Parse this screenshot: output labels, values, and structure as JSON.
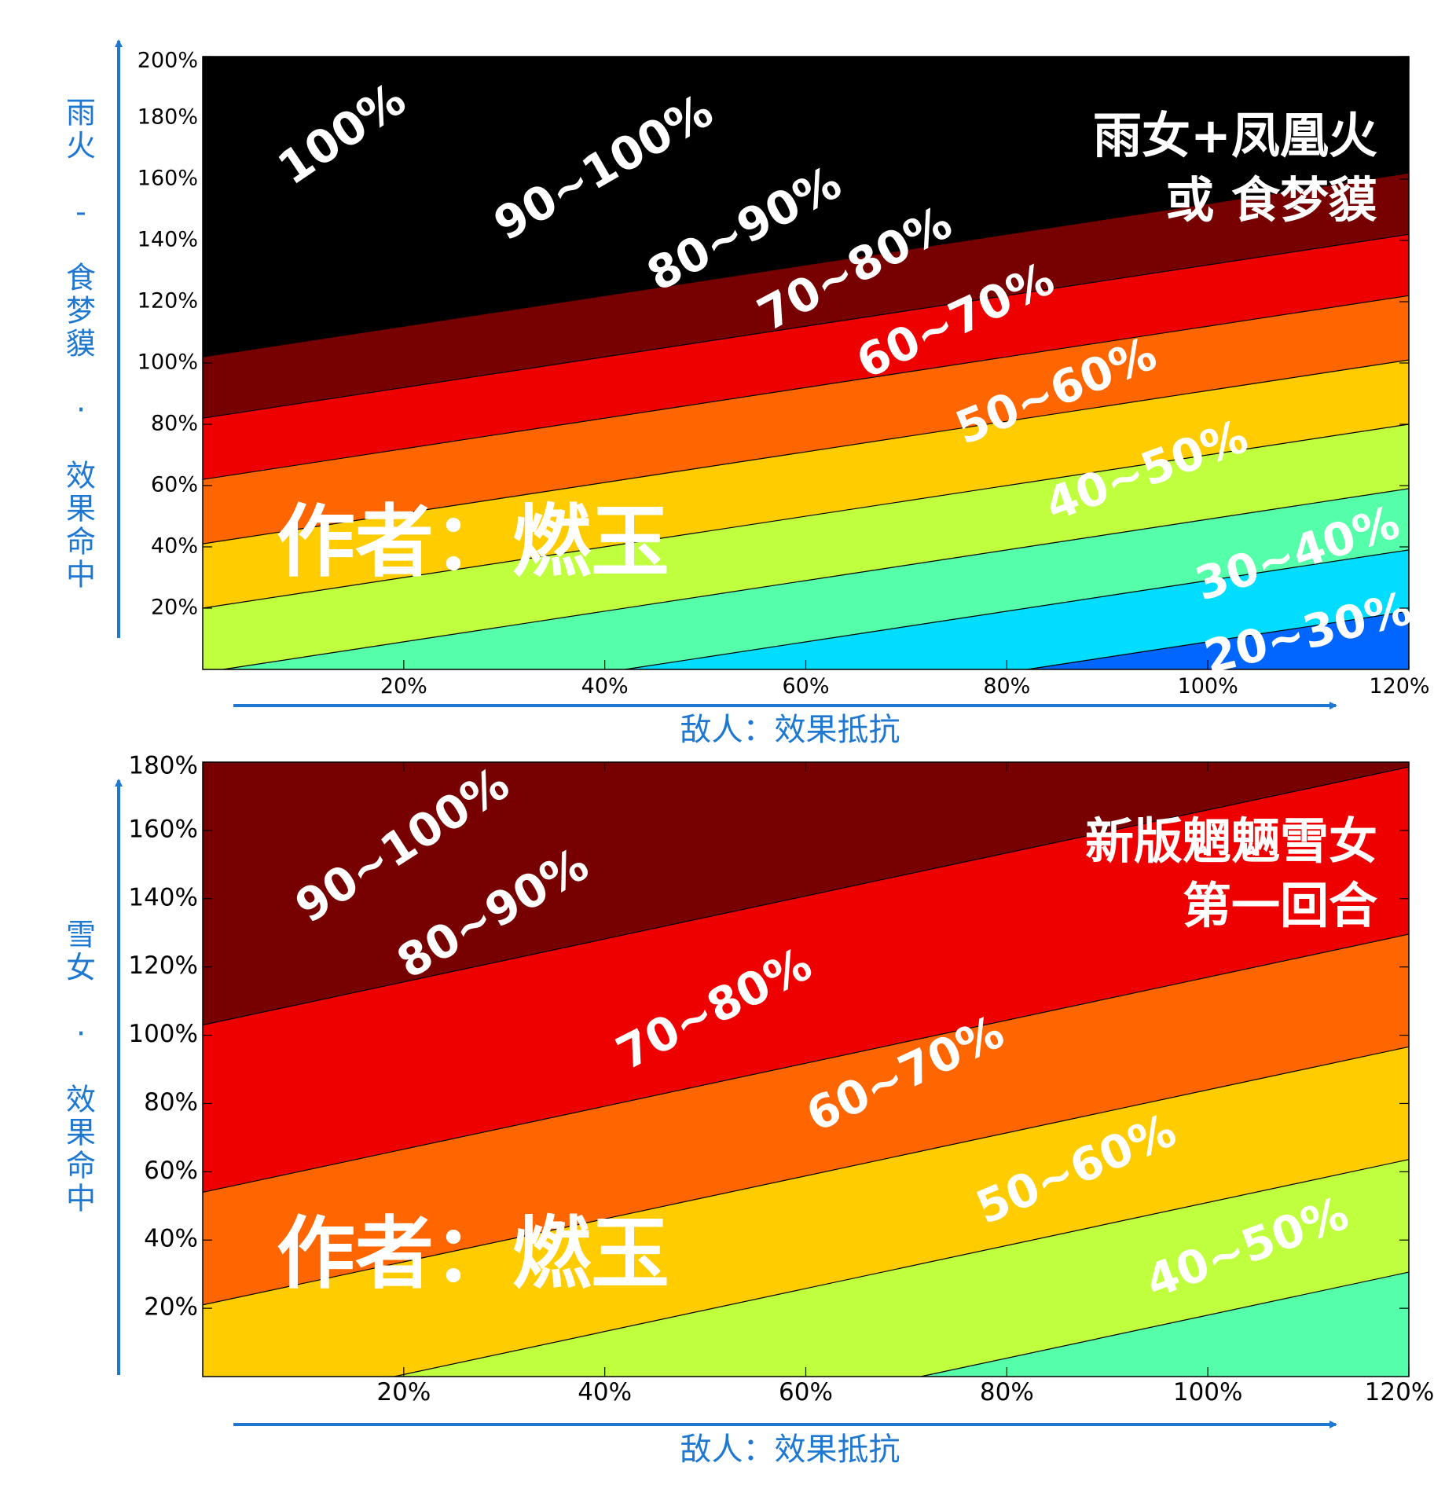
{
  "chart_data": [
    {
      "type": "contour",
      "subtitle_lines": [
        "雨女+凤凰火",
        "或 食梦貘"
      ],
      "watermark": "作者：燃玉",
      "xlabel": "敌人：效果抵抗",
      "ylabel": "雨火 - 食梦貘 · 效果命中",
      "xlim": [
        0,
        120
      ],
      "ylim": [
        0,
        200
      ],
      "x_ticks": [
        20,
        40,
        60,
        80,
        100,
        120
      ],
      "x_tick_labels": [
        "20%",
        "40%",
        "60%",
        "80%",
        "100%",
        "120%"
      ],
      "y_ticks": [
        20,
        40,
        60,
        80,
        100,
        120,
        140,
        160,
        180,
        200
      ],
      "y_tick_labels": [
        "20%",
        "40%",
        "60%",
        "80%",
        "100%",
        "120%",
        "140%",
        "160%",
        "180%",
        "200%"
      ],
      "boundary_slope": 0.5,
      "bands": [
        {
          "label": "100%",
          "min_intercept": 102,
          "color": "#000000",
          "label_x": 14,
          "label_y": 174,
          "label_rot": -34
        },
        {
          "label": "90~100%",
          "min_intercept": 82,
          "color": "#770000",
          "label_x": 40,
          "label_y": 163,
          "label_rot": -30
        },
        {
          "label": "80~90%",
          "min_intercept": 62,
          "color": "#EE0000",
          "label_x": 54,
          "label_y": 143,
          "label_rot": -28
        },
        {
          "label": "70~80%",
          "min_intercept": 41,
          "color": "#FF6600",
          "label_x": 65,
          "label_y": 130,
          "label_rot": -28
        },
        {
          "label": "60~70%",
          "min_intercept": 20,
          "color": "#FFCC00",
          "label_x": 75,
          "label_y": 113,
          "label_rot": -25
        },
        {
          "label": "50~60%",
          "min_intercept": -1,
          "color": "#C0FF3E",
          "label_x": 85,
          "label_y": 90,
          "label_rot": -22
        },
        {
          "label": "40~50%",
          "min_intercept": -21,
          "color": "#55FFAA",
          "label_x": 94,
          "label_y": 64,
          "label_rot": -20
        },
        {
          "label": "30~40%",
          "min_intercept": -41,
          "color": "#00DDFF",
          "label_x": 109,
          "label_y": 37,
          "label_rot": -18
        },
        {
          "label": "20~30%",
          "min_intercept": -60,
          "color": "#0066FF",
          "label_x": 110,
          "label_y": 11,
          "label_rot": -14
        }
      ]
    },
    {
      "type": "contour",
      "subtitle_lines": [
        "新版魍魉雪女",
        "第一回合"
      ],
      "watermark": "作者：燃玉",
      "xlabel": "敌人：效果抵抗",
      "ylabel": "雪女 · 效果命中",
      "xlim": [
        0,
        120
      ],
      "ylim": [
        0,
        180
      ],
      "x_ticks": [
        20,
        40,
        60,
        80,
        100,
        120
      ],
      "x_tick_labels": [
        "20%",
        "40%",
        "60%",
        "80%",
        "100%",
        "120%"
      ],
      "y_ticks": [
        20,
        40,
        60,
        80,
        100,
        120,
        140,
        160,
        180
      ],
      "y_tick_labels": [
        "20%",
        "40%",
        "60%",
        "80%",
        "100%",
        "120%",
        "140%",
        "160%",
        "180%"
      ],
      "boundary_slope": 0.63,
      "bands": [
        {
          "label": "90~100%",
          "min_intercept": 103,
          "color": "#770000",
          "label_x": 20,
          "label_y": 155,
          "label_rot": -33
        },
        {
          "label": "80~90%",
          "min_intercept": 54,
          "color": "#EE0000",
          "label_x": 29,
          "label_y": 135,
          "label_rot": -30
        },
        {
          "label": "70~80%",
          "min_intercept": 21,
          "color": "#FF6600",
          "label_x": 51,
          "label_y": 107,
          "label_rot": -27
        },
        {
          "label": "60~70%",
          "min_intercept": -12,
          "color": "#FFCC00",
          "label_x": 70,
          "label_y": 88,
          "label_rot": -25
        },
        {
          "label": "50~60%",
          "min_intercept": -45,
          "color": "#C0FF3E",
          "label_x": 87,
          "label_y": 60,
          "label_rot": -23
        },
        {
          "label": "40~50%",
          "min_intercept": -78,
          "color": "#55FFAA",
          "label_x": 104,
          "label_y": 37,
          "label_rot": -20
        },
        {
          "label": "",
          "min_intercept": -999,
          "color": "#00DDFF",
          "label_x": 0,
          "label_y": 0,
          "label_rot": 0
        }
      ]
    }
  ]
}
